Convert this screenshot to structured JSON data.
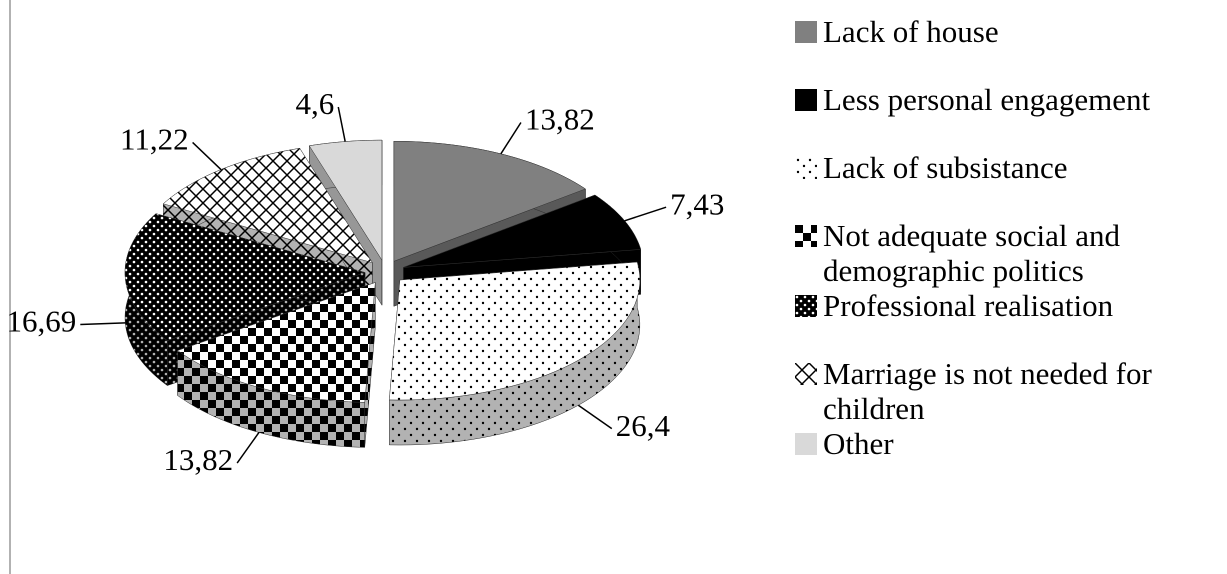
{
  "chart_data": {
    "type": "pie",
    "categories": [
      "Lack of house",
      "Less personal engagement",
      "Lack of subsistance",
      "Not adequate social and demographic politics",
      "Professional realisation",
      "Marriage is not needed for children",
      "Other"
    ],
    "values": [
      13.82,
      7.43,
      26.4,
      13.82,
      16.69,
      11.22,
      4.6
    ],
    "value_labels": [
      "13,82",
      "7,43",
      "26,4",
      "13,82",
      "16,69",
      "11,22",
      "4,6"
    ],
    "colors": [
      "#808080",
      "#000000",
      "dots",
      "checker",
      "darkdots",
      "crosshatch",
      "#d9d9d9"
    ]
  }
}
